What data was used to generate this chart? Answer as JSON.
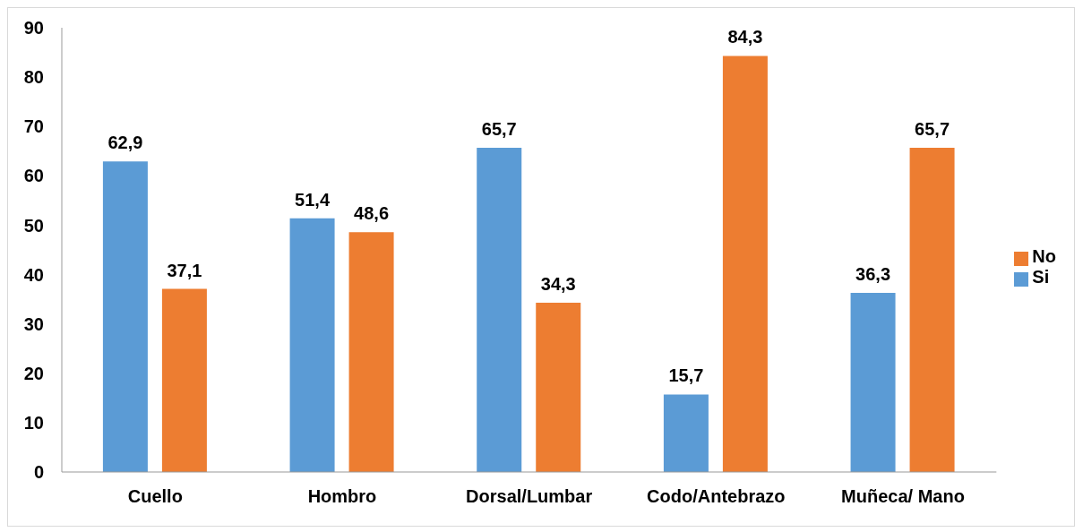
{
  "chart_data": {
    "type": "bar",
    "categories": [
      "Cuello",
      "Hombro",
      "Dorsal/Lumbar",
      "Codo/Antebrazo",
      "Muñeca/ Mano"
    ],
    "series": [
      {
        "name": "Si",
        "color": "#5b9bd5",
        "values": [
          62.9,
          51.4,
          65.7,
          15.7,
          36.3
        ],
        "value_labels": [
          "62,9",
          "51,4",
          "65,7",
          "15,7",
          "36,3"
        ]
      },
      {
        "name": "No",
        "color": "#ed7d31",
        "values": [
          37.1,
          48.6,
          34.3,
          84.3,
          65.7
        ],
        "value_labels": [
          "37,1",
          "48,6",
          "34,3",
          "84,3",
          "65,7"
        ]
      }
    ],
    "ylim": [
      0,
      90
    ],
    "yticks": [
      0,
      10,
      20,
      30,
      40,
      50,
      60,
      70,
      80,
      90
    ],
    "grid": false,
    "legend": "right"
  }
}
